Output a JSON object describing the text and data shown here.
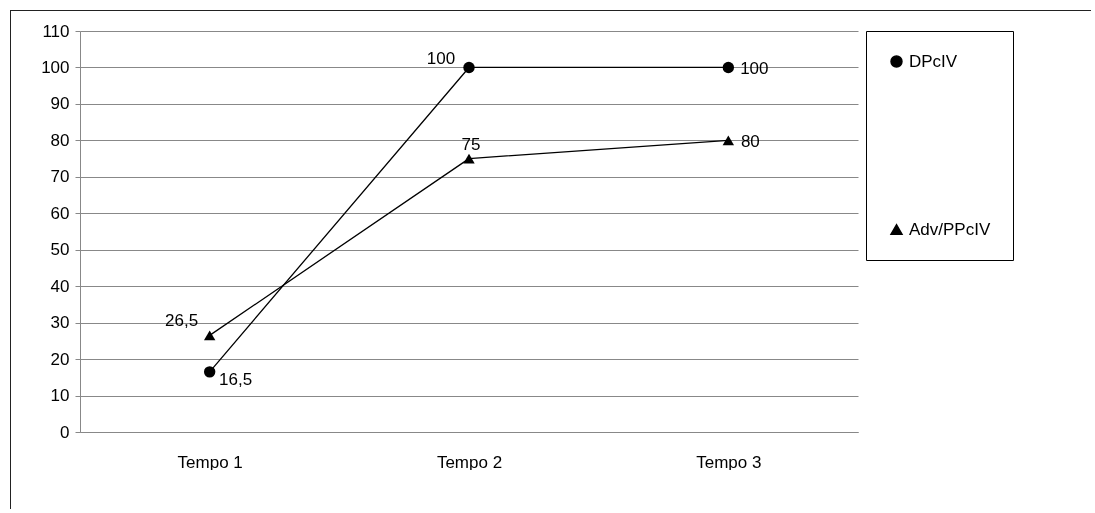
{
  "chart_data": {
    "type": "line",
    "categories": [
      "Tempo 1",
      "Tempo 2",
      "Tempo 3"
    ],
    "series": [
      {
        "name": "DPcIV",
        "color": "#000000",
        "marker": "circle",
        "values": [
          16.5,
          100,
          100
        ],
        "value_labels": [
          "16,5",
          "100",
          "100"
        ]
      },
      {
        "name": "Adv/PPcIV",
        "color": "#000000",
        "marker": "triangle",
        "values": [
          26.5,
          75,
          80
        ],
        "value_labels": [
          "26,5",
          "75",
          "80"
        ]
      }
    ],
    "ylim": [
      0,
      110
    ],
    "yticks": [
      0,
      10,
      20,
      30,
      40,
      50,
      60,
      70,
      80,
      90,
      100,
      110
    ],
    "grid": "y",
    "legend": "right",
    "line_style": "solid"
  }
}
